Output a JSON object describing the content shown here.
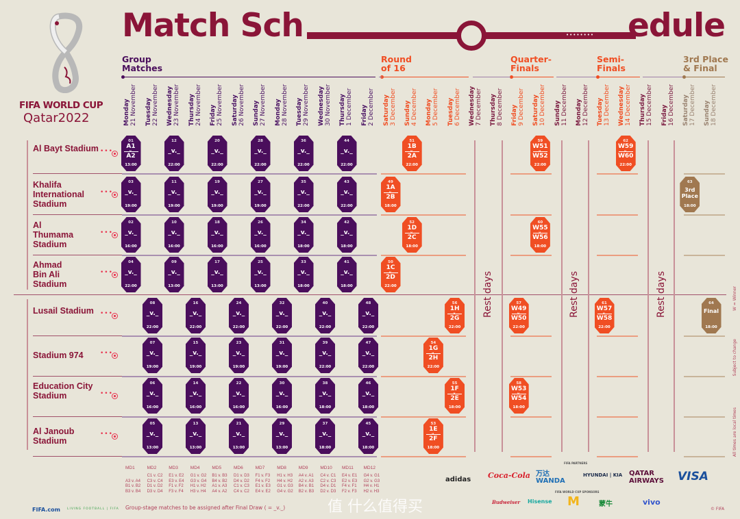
{
  "header": {
    "title_left": "Match Sch",
    "title_right": "edule"
  },
  "logo": {
    "line1": "FIFA WORLD CUP",
    "line2": "Qatar2022"
  },
  "colors": {
    "background": "#e8e5d9",
    "maroon": "#8a1538",
    "group": "#4a0e5c",
    "knockout": "#f04e23",
    "final": "#a07850",
    "rest": "#7a1a40"
  },
  "stages": [
    {
      "key": "group",
      "label1": "Group",
      "label2": "Matches"
    },
    {
      "key": "r16",
      "label1": "Round",
      "label2": "of 16"
    },
    {
      "key": "qf",
      "label1": "Quarter-",
      "label2": "Finals"
    },
    {
      "key": "sf",
      "label1": "Semi-",
      "label2": "Finals"
    },
    {
      "key": "final",
      "label1": "3rd Place",
      "label2": "& Final"
    }
  ],
  "dates": [
    {
      "day": "Monday",
      "date": "21 November",
      "stage": "group"
    },
    {
      "day": "Tuesday",
      "date": "22 November",
      "stage": "group"
    },
    {
      "day": "Wednesday",
      "date": "23 November",
      "stage": "group"
    },
    {
      "day": "Thursday",
      "date": "24 November",
      "stage": "group"
    },
    {
      "day": "Friday",
      "date": "25 November",
      "stage": "group"
    },
    {
      "day": "Saturday",
      "date": "26 November",
      "stage": "group"
    },
    {
      "day": "Sunday",
      "date": "27 November",
      "stage": "group"
    },
    {
      "day": "Monday",
      "date": "28 November",
      "stage": "group"
    },
    {
      "day": "Tuesday",
      "date": "29 November",
      "stage": "group"
    },
    {
      "day": "Wednesday",
      "date": "30 November",
      "stage": "group"
    },
    {
      "day": "Thursday",
      "date": "1 December",
      "stage": "group"
    },
    {
      "day": "Friday",
      "date": "2 December",
      "stage": "group"
    },
    {
      "day": "Saturday",
      "date": "3 December",
      "stage": "knockout"
    },
    {
      "day": "Sunday",
      "date": "4 December",
      "stage": "knockout"
    },
    {
      "day": "Monday",
      "date": "5 December",
      "stage": "knockout"
    },
    {
      "day": "Tuesday",
      "date": "6 December",
      "stage": "knockout"
    },
    {
      "day": "Wednesday",
      "date": "7 December",
      "stage": "rest"
    },
    {
      "day": "Thursday",
      "date": "8 December",
      "stage": "rest"
    },
    {
      "day": "Friday",
      "date": "9 December",
      "stage": "knockout"
    },
    {
      "day": "Saturday",
      "date": "10 December",
      "stage": "knockout"
    },
    {
      "day": "Sunday",
      "date": "11 December",
      "stage": "rest"
    },
    {
      "day": "Monday",
      "date": "12 December",
      "stage": "rest"
    },
    {
      "day": "Tuesday",
      "date": "13 December",
      "stage": "knockout"
    },
    {
      "day": "Wednesday",
      "date": "14 December",
      "stage": "knockout"
    },
    {
      "day": "Thursday",
      "date": "15 December",
      "stage": "rest"
    },
    {
      "day": "Friday",
      "date": "16 December",
      "stage": "rest"
    },
    {
      "day": "Saturday",
      "date": "17 December",
      "stage": "final"
    },
    {
      "day": "Sunday",
      "date": "18 December",
      "stage": "final"
    }
  ],
  "venues": [
    "Al Bayt Stadium",
    "Khalifa International Stadium",
    "Al Thumama Stadium",
    "Ahmad Bin Ali Stadium",
    "Lusail Stadium",
    "Stadium 974",
    "Education City Stadium",
    "Al Janoub Stadium"
  ],
  "rest_label": "Rest days",
  "vs_label": "v.",
  "tbd_label": "_v._",
  "matches": [
    {
      "no": "01",
      "venue": 0,
      "date": "21 November",
      "home": "A1",
      "away": "A2",
      "time": "13:00",
      "stage": "group"
    },
    {
      "no": "12",
      "venue": 0,
      "date": "23 November",
      "time": "22:00",
      "stage": "group"
    },
    {
      "no": "20",
      "venue": 0,
      "date": "25 November",
      "time": "22:00",
      "stage": "group"
    },
    {
      "no": "28",
      "venue": 0,
      "date": "27 November",
      "time": "22:00",
      "stage": "group"
    },
    {
      "no": "36",
      "venue": 0,
      "date": "29 November",
      "time": "22:00",
      "stage": "group"
    },
    {
      "no": "44",
      "venue": 0,
      "date": "1 December",
      "time": "22:00",
      "stage": "group"
    },
    {
      "no": "03",
      "venue": 1,
      "date": "21 November",
      "time": "19:00",
      "stage": "group"
    },
    {
      "no": "11",
      "venue": 1,
      "date": "23 November",
      "time": "19:00",
      "stage": "group"
    },
    {
      "no": "19",
      "venue": 1,
      "date": "25 November",
      "time": "19:00",
      "stage": "group"
    },
    {
      "no": "27",
      "venue": 1,
      "date": "27 November",
      "time": "19:00",
      "stage": "group"
    },
    {
      "no": "35",
      "venue": 1,
      "date": "29 November",
      "time": "22:00",
      "stage": "group"
    },
    {
      "no": "43",
      "venue": 1,
      "date": "1 December",
      "time": "22:00",
      "stage": "group"
    },
    {
      "no": "02",
      "venue": 2,
      "date": "21 November",
      "time": "16:00",
      "stage": "group"
    },
    {
      "no": "10",
      "venue": 2,
      "date": "23 November",
      "time": "16:00",
      "stage": "group"
    },
    {
      "no": "18",
      "venue": 2,
      "date": "25 November",
      "time": "16:00",
      "stage": "group"
    },
    {
      "no": "26",
      "venue": 2,
      "date": "27 November",
      "time": "16:00",
      "stage": "group"
    },
    {
      "no": "34",
      "venue": 2,
      "date": "29 November",
      "time": "18:00",
      "stage": "group"
    },
    {
      "no": "42",
      "venue": 2,
      "date": "1 December",
      "time": "18:00",
      "stage": "group"
    },
    {
      "no": "04",
      "venue": 3,
      "date": "21 November",
      "time": "22:00",
      "stage": "group"
    },
    {
      "no": "09",
      "venue": 3,
      "date": "23 November",
      "time": "13:00",
      "stage": "group"
    },
    {
      "no": "17",
      "venue": 3,
      "date": "25 November",
      "time": "13:00",
      "stage": "group"
    },
    {
      "no": "25",
      "venue": 3,
      "date": "27 November",
      "time": "13:00",
      "stage": "group"
    },
    {
      "no": "33",
      "venue": 3,
      "date": "29 November",
      "time": "18:00",
      "stage": "group"
    },
    {
      "no": "41",
      "venue": 3,
      "date": "1 December",
      "time": "18:00",
      "stage": "group"
    },
    {
      "no": "08",
      "venue": 4,
      "date": "22 November",
      "time": "22:00",
      "stage": "group"
    },
    {
      "no": "16",
      "venue": 4,
      "date": "24 November",
      "time": "22:00",
      "stage": "group"
    },
    {
      "no": "24",
      "venue": 4,
      "date": "26 November",
      "time": "22:00",
      "stage": "group"
    },
    {
      "no": "32",
      "venue": 4,
      "date": "28 November",
      "time": "22:00",
      "stage": "group"
    },
    {
      "no": "40",
      "venue": 4,
      "date": "30 November",
      "time": "22:00",
      "stage": "group"
    },
    {
      "no": "48",
      "venue": 4,
      "date": "2 December",
      "time": "22:00",
      "stage": "group"
    },
    {
      "no": "07",
      "venue": 5,
      "date": "22 November",
      "time": "19:00",
      "stage": "group"
    },
    {
      "no": "15",
      "venue": 5,
      "date": "24 November",
      "time": "19:00",
      "stage": "group"
    },
    {
      "no": "23",
      "venue": 5,
      "date": "26 November",
      "time": "19:00",
      "stage": "group"
    },
    {
      "no": "31",
      "venue": 5,
      "date": "28 November",
      "time": "19:00",
      "stage": "group"
    },
    {
      "no": "39",
      "venue": 5,
      "date": "30 November",
      "time": "22:00",
      "stage": "group"
    },
    {
      "no": "47",
      "venue": 5,
      "date": "2 December",
      "time": "22:00",
      "stage": "group"
    },
    {
      "no": "06",
      "venue": 6,
      "date": "22 November",
      "time": "16:00",
      "stage": "group"
    },
    {
      "no": "14",
      "venue": 6,
      "date": "24 November",
      "time": "16:00",
      "stage": "group"
    },
    {
      "no": "22",
      "venue": 6,
      "date": "26 November",
      "time": "16:00",
      "stage": "group"
    },
    {
      "no": "30",
      "venue": 6,
      "date": "28 November",
      "time": "16:00",
      "stage": "group"
    },
    {
      "no": "38",
      "venue": 6,
      "date": "30 November",
      "time": "18:00",
      "stage": "group"
    },
    {
      "no": "46",
      "venue": 6,
      "date": "2 December",
      "time": "18:00",
      "stage": "group"
    },
    {
      "no": "05",
      "venue": 7,
      "date": "22 November",
      "time": "13:00",
      "stage": "group"
    },
    {
      "no": "13",
      "venue": 7,
      "date": "24 November",
      "time": "13:00",
      "stage": "group"
    },
    {
      "no": "21",
      "venue": 7,
      "date": "26 November",
      "time": "13:00",
      "stage": "group"
    },
    {
      "no": "29",
      "venue": 7,
      "date": "28 November",
      "time": "13:00",
      "stage": "group"
    },
    {
      "no": "37",
      "venue": 7,
      "date": "30 November",
      "time": "18:00",
      "stage": "group"
    },
    {
      "no": "45",
      "venue": 7,
      "date": "2 December",
      "time": "18:00",
      "stage": "group"
    },
    {
      "no": "51",
      "venue": 0,
      "date": "4 December",
      "home": "1B",
      "away": "2A",
      "time": "22:00",
      "stage": "knockout"
    },
    {
      "no": "49",
      "venue": 1,
      "date": "3 December",
      "home": "1A",
      "away": "2B",
      "time": "18:00",
      "stage": "knockout"
    },
    {
      "no": "52",
      "venue": 2,
      "date": "4 December",
      "home": "1D",
      "away": "2C",
      "time": "18:00",
      "stage": "knockout"
    },
    {
      "no": "50",
      "venue": 3,
      "date": "3 December",
      "home": "1C",
      "away": "2D",
      "time": "22:00",
      "stage": "knockout"
    },
    {
      "no": "56",
      "venue": 4,
      "date": "6 December",
      "home": "1H",
      "away": "2G",
      "time": "22:00",
      "stage": "knockout"
    },
    {
      "no": "54",
      "venue": 5,
      "date": "5 December",
      "home": "1G",
      "away": "2H",
      "time": "22:00",
      "stage": "knockout"
    },
    {
      "no": "55",
      "venue": 6,
      "date": "6 December",
      "home": "1F",
      "away": "2E",
      "time": "18:00",
      "stage": "knockout"
    },
    {
      "no": "53",
      "venue": 7,
      "date": "5 December",
      "home": "1E",
      "away": "2F",
      "time": "18:00",
      "stage": "knockout"
    },
    {
      "no": "59",
      "venue": 0,
      "date": "10 December",
      "home": "W51",
      "away": "W52",
      "time": "22:00",
      "stage": "knockout"
    },
    {
      "no": "60",
      "venue": 2,
      "date": "10 December",
      "home": "W55",
      "away": "W56",
      "time": "18:00",
      "stage": "knockout"
    },
    {
      "no": "57",
      "venue": 4,
      "date": "9 December",
      "home": "W49",
      "away": "W50",
      "time": "22:00",
      "stage": "knockout"
    },
    {
      "no": "58",
      "venue": 6,
      "date": "9 December",
      "home": "W53",
      "away": "W54",
      "time": "18:00",
      "stage": "knockout"
    },
    {
      "no": "62",
      "venue": 0,
      "date": "14 December",
      "home": "W59",
      "away": "W60",
      "time": "22:00",
      "stage": "knockout"
    },
    {
      "no": "61",
      "venue": 4,
      "date": "13 December",
      "home": "W57",
      "away": "W58",
      "time": "22:00",
      "stage": "knockout"
    },
    {
      "no": "63",
      "venue": 1,
      "date": "17 December",
      "label": "3rd Place",
      "time": "18:00",
      "stage": "final"
    },
    {
      "no": "64",
      "venue": 4,
      "date": "18 December",
      "label": "Final",
      "time": "18:00",
      "stage": "final"
    }
  ],
  "matchdays": [
    {
      "label": "MD1",
      "games": [
        "",
        "A3 v. A4",
        "B1 v. B2",
        "B3 v. B4"
      ]
    },
    {
      "label": "MD2",
      "games": [
        "C1 v. C2",
        "C3 v. C4",
        "D1 v. D2",
        "D3 v. D4"
      ]
    },
    {
      "label": "MD3",
      "games": [
        "E1 v. E2",
        "E3 v. E4",
        "F1 v. F2",
        "F3 v. F4"
      ]
    },
    {
      "label": "MD4",
      "games": [
        "G1 v. G2",
        "G3 v. G4",
        "H1 v. H2",
        "H3 v. H4"
      ]
    },
    {
      "label": "MD5",
      "games": [
        "B1 v. B3",
        "B4 v. B2",
        "A1 v. A3",
        "A4 v. A2"
      ]
    },
    {
      "label": "MD6",
      "games": [
        "D1 v. D3",
        "D4 v. D2",
        "C1 v. C3",
        "C4 v. C2"
      ]
    },
    {
      "label": "MD7",
      "games": [
        "F1 v. F3",
        "F4 v. F2",
        "E1 v. E3",
        "E4 v. E2"
      ]
    },
    {
      "label": "MD8",
      "games": [
        "H1 v. H3",
        "H4 v. H2",
        "G1 v. G3",
        "G4 v. G2"
      ]
    },
    {
      "label": "MD9",
      "games": [
        "A4 v. A1",
        "A2 v. A3",
        "B4 v. B1",
        "B2 v. B3"
      ]
    },
    {
      "label": "MD10",
      "games": [
        "C4 v. C1",
        "C2 v. C3",
        "D4 v. D1",
        "D2 v. D3"
      ]
    },
    {
      "label": "MD11",
      "games": [
        "E4 v. E1",
        "E2 v. E3",
        "F4 v. F1",
        "F2 v. F3"
      ]
    },
    {
      "label": "MD12",
      "games": [
        "G4 v. G1",
        "G2 v. G3",
        "H4 v. H1",
        "H2 v. H3"
      ]
    }
  ],
  "footnote": "Group-stage matches to be assigned after Final Draw ( = _v._)",
  "side_notes": [
    "W = Winner",
    "Subject to change",
    "All times are local times"
  ],
  "footer": {
    "fifa_com": "FIFA.com",
    "living_football": "LIVING FOOTBALL | FIFA",
    "copyright": "© FIFA"
  },
  "partners": {
    "heading": "FIFA PARTNERS",
    "items": [
      "adidas",
      "Coca-Cola",
      "万达 WANDA",
      "HYUNDAI | KIA",
      "QATAR AIRWAYS",
      "VISA"
    ]
  },
  "sponsors": {
    "heading": "FIFA WORLD CUP SPONSORS",
    "items": [
      "Budweiser",
      "Hisense",
      "M",
      "蒙牛",
      "vivo"
    ]
  },
  "watermark": "值 什么值得买"
}
